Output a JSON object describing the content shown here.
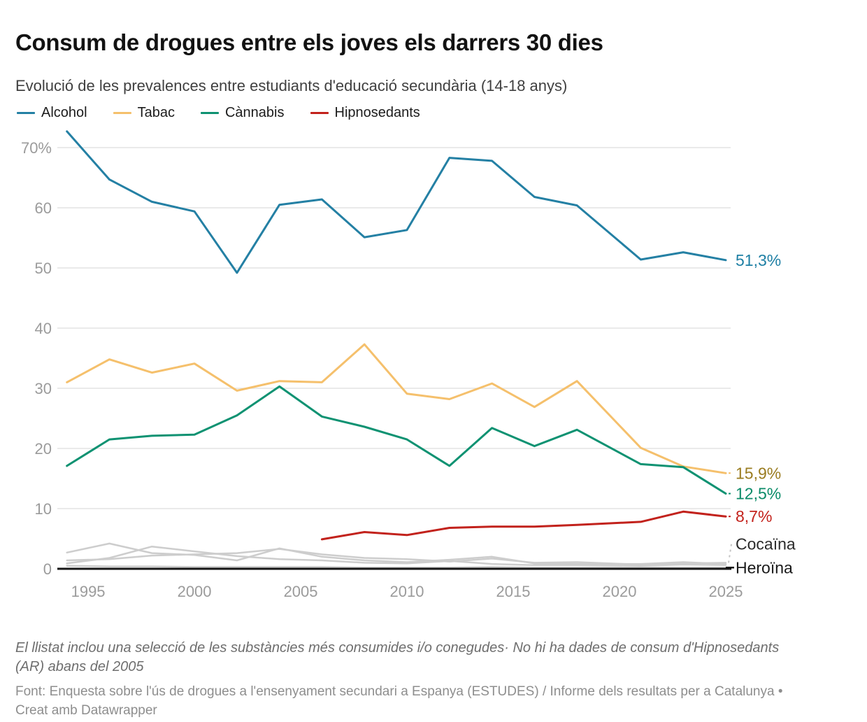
{
  "header": {
    "title": "Consum de drogues entre els joves els darrers 30 dies",
    "subtitle": "Evolució de les prevalences entre estudiants d'educació secundària (14-18 anys)"
  },
  "notes": {
    "footnote": "El llistat inclou una selecció de les substàncies més consumides i/o conegudes· No hi ha dades de consum d'Hipnosedants (AR) abans del 2005",
    "source_prefix": "Font: Enquesta sobre l'ús de drogues a l'ensenyament secundari a Espanya (ESTUDES) / Informe dels resultats per a Catalunya • ",
    "source_link": "Creat amb Datawrapper"
  },
  "chart_data": {
    "type": "line",
    "x": [
      1994,
      1996,
      1998,
      2000,
      2002,
      2004,
      2006,
      2008,
      2010,
      2012,
      2014,
      2016,
      2018,
      2021,
      2023,
      2025
    ],
    "xticks": [
      1995,
      2000,
      2005,
      2010,
      2015,
      2020,
      2025
    ],
    "yticks": [
      {
        "v": 70,
        "label": "70%"
      },
      {
        "v": 60,
        "label": "60"
      },
      {
        "v": 50,
        "label": "50"
      },
      {
        "v": 40,
        "label": "40"
      },
      {
        "v": 30,
        "label": "30"
      },
      {
        "v": 20,
        "label": "20"
      },
      {
        "v": 10,
        "label": "10"
      },
      {
        "v": 0,
        "label": "0"
      }
    ],
    "ylim": [
      0,
      73
    ],
    "xlim": [
      1993.55,
      2025
    ],
    "grid": "horizontal",
    "legend_position": "top",
    "series": [
      {
        "id": "unlabeled-gray-1",
        "label": "",
        "in_legend": false,
        "color": "#cdcdcd",
        "width": 2.5,
        "values": [
          2.7,
          4.2,
          2.6,
          2.3,
          1.4,
          3.4,
          2.0,
          1.4,
          1.1,
          1.5,
          2.0,
          0.9,
          0.8,
          0.8,
          1.1,
          0.8
        ],
        "end_label": "",
        "end_label_v": null,
        "label_color": "",
        "connector": "none"
      },
      {
        "id": "unlabeled-gray-2",
        "label": "",
        "in_legend": false,
        "color": "#cdcdcd",
        "width": 2.5,
        "values": [
          0.9,
          1.8,
          3.7,
          2.9,
          2.1,
          1.6,
          1.4,
          1.0,
          0.9,
          1.3,
          0.8,
          0.6,
          0.6,
          0.5,
          0.7,
          0.6
        ],
        "end_label": "",
        "end_label_v": null,
        "label_color": "",
        "connector": "none"
      },
      {
        "id": "cocaina",
        "label": "",
        "in_legend": false,
        "color": "#cdcdcd",
        "width": 2.5,
        "values": [
          1.4,
          1.6,
          2.2,
          2.4,
          2.6,
          3.3,
          2.4,
          1.8,
          1.6,
          1.2,
          1.7,
          1.0,
          1.1,
          0.7,
          0.9,
          1.0
        ],
        "end_label": "Cocaïna",
        "end_label_v": 4.1,
        "label_color": "#2b2b2b",
        "connector": "dashed"
      },
      {
        "id": "heroina",
        "label": "",
        "in_legend": false,
        "color": "#cdcdcd",
        "width": 2.5,
        "values": [
          0.5,
          0.4,
          0.4,
          0.3,
          0.3,
          0.3,
          0.3,
          0.2,
          0.2,
          0.2,
          0.3,
          0.2,
          0.2,
          0.2,
          0.2,
          0.2
        ],
        "end_label": "Heroïna",
        "end_label_v": 0.2,
        "label_color": "#1a1a1a",
        "connector": "solid"
      },
      {
        "id": "tabac",
        "label": "Tabac",
        "in_legend": true,
        "color": "#f5c06c",
        "width": 3,
        "values": [
          31.0,
          34.8,
          32.6,
          34.1,
          29.6,
          31.2,
          31.0,
          37.3,
          29.1,
          28.2,
          30.8,
          26.9,
          31.2,
          20.1,
          17.0,
          15.9
        ],
        "end_label": "15,9%",
        "end_label_v": 15.9,
        "label_color": "#9a7c20",
        "connector": "dashed"
      },
      {
        "id": "cannabis",
        "label": "Cànnabis",
        "in_legend": true,
        "color": "#0f9272",
        "width": 3,
        "values": [
          17.1,
          21.5,
          22.1,
          22.3,
          25.5,
          30.3,
          25.3,
          23.6,
          21.5,
          17.1,
          23.4,
          20.4,
          23.1,
          17.4,
          16.9,
          12.5
        ],
        "end_label": "12,5%",
        "end_label_v": 12.5,
        "label_color": "#0b8b68",
        "connector": "dashed"
      },
      {
        "id": "hipnosedants",
        "label": "Hipnosedants",
        "in_legend": true,
        "color": "#c2221c",
        "width": 3,
        "values": [
          null,
          null,
          null,
          null,
          null,
          null,
          4.9,
          6.1,
          5.6,
          6.8,
          7.0,
          7.0,
          7.3,
          7.8,
          9.5,
          8.7
        ],
        "end_label": "8,7%",
        "end_label_v": 8.7,
        "label_color": "#c3221c",
        "connector": "dashed"
      },
      {
        "id": "alcohol",
        "label": "Alcohol",
        "in_legend": true,
        "color": "#2480a4",
        "width": 3,
        "values": [
          72.7,
          64.7,
          61.0,
          59.4,
          49.2,
          60.5,
          61.4,
          55.1,
          56.3,
          68.3,
          67.8,
          61.8,
          60.4,
          51.4,
          52.6,
          51.3
        ],
        "end_label": "51,3%",
        "end_label_v": 51.3,
        "label_color": "#1e7fa4",
        "connector": "none"
      }
    ],
    "legend_order": [
      "alcohol",
      "tabac",
      "cannabis",
      "hipnosedants"
    ]
  }
}
